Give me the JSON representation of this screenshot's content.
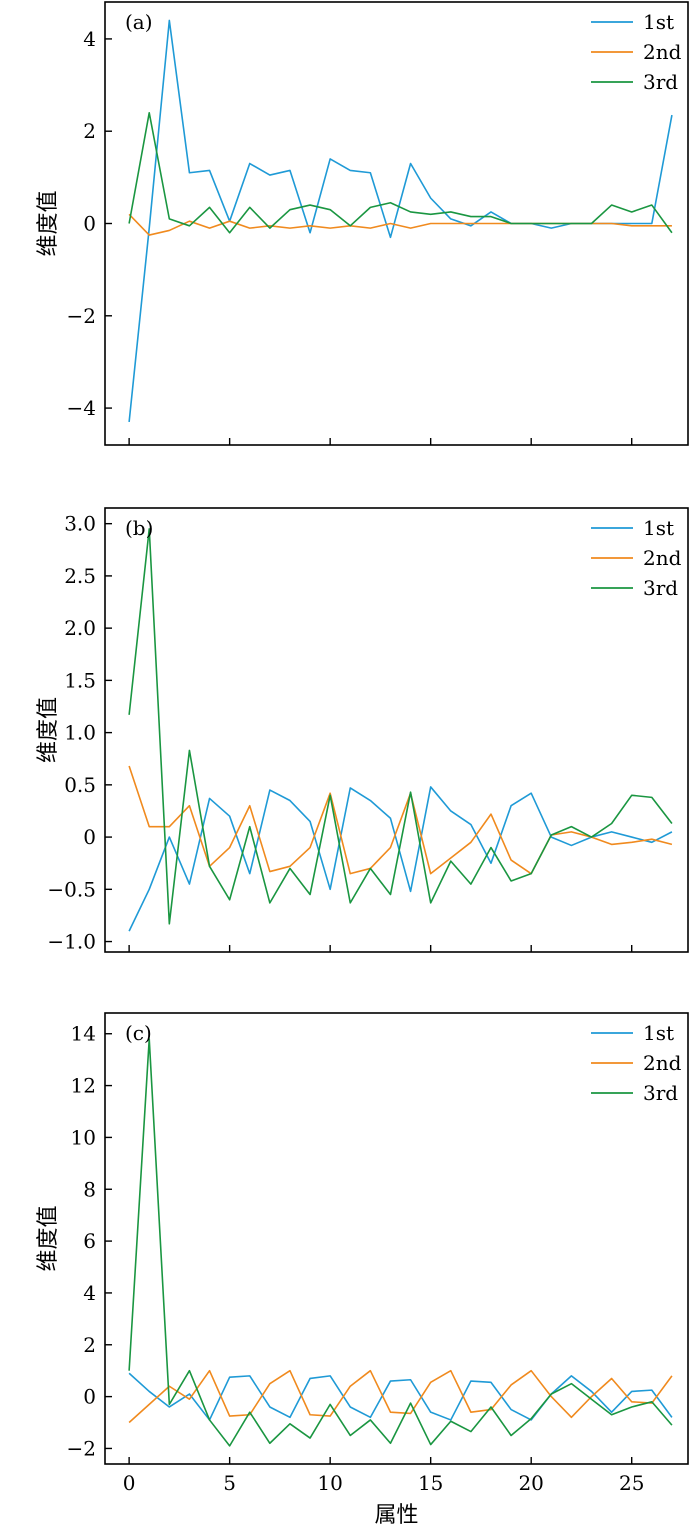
{
  "chart_data": [
    {
      "type": "line",
      "panel_label": "(a)",
      "ylabel": "维度值",
      "xlabel": "",
      "xlim": [
        -1.2,
        27.8
      ],
      "ylim": [
        -4.8,
        4.8
      ],
      "xticks": [
        0,
        5,
        10,
        15,
        20,
        25
      ],
      "yticks": [
        -4,
        -2,
        0,
        2,
        4
      ],
      "ytick_labels": [
        "−4",
        "−2",
        "0",
        "2",
        "4"
      ],
      "legend_position": "top-right",
      "x": [
        0,
        1,
        2,
        3,
        4,
        5,
        6,
        7,
        8,
        9,
        10,
        11,
        12,
        13,
        14,
        15,
        16,
        17,
        18,
        19,
        20,
        21,
        22,
        23,
        24,
        25,
        26,
        27
      ],
      "series": [
        {
          "name": "1st",
          "color": "#1f9ad6",
          "values": [
            -4.3,
            -0.1,
            4.4,
            1.1,
            1.15,
            0.05,
            1.3,
            1.05,
            1.15,
            -0.2,
            1.4,
            1.15,
            1.1,
            -0.3,
            1.3,
            0.55,
            0.1,
            -0.05,
            0.25,
            0.0,
            0.0,
            -0.1,
            0.0,
            0.0,
            0.0,
            0.0,
            0.0,
            2.35
          ]
        },
        {
          "name": "2nd",
          "color": "#f08a1e",
          "values": [
            0.2,
            -0.25,
            -0.15,
            0.05,
            -0.1,
            0.05,
            -0.1,
            -0.05,
            -0.1,
            -0.05,
            -0.1,
            -0.05,
            -0.1,
            0.0,
            -0.1,
            0.0,
            0.0,
            0.0,
            0.0,
            0.0,
            0.0,
            0.0,
            0.0,
            0.0,
            0.0,
            -0.05,
            -0.05,
            -0.05
          ]
        },
        {
          "name": "3rd",
          "color": "#1a9641",
          "values": [
            0.0,
            2.4,
            0.1,
            -0.05,
            0.35,
            -0.2,
            0.35,
            -0.1,
            0.3,
            0.4,
            0.3,
            -0.05,
            0.35,
            0.45,
            0.25,
            0.2,
            0.25,
            0.15,
            0.15,
            0.0,
            0.0,
            0.0,
            0.0,
            0.0,
            0.4,
            0.25,
            0.4,
            -0.2
          ]
        }
      ]
    },
    {
      "type": "line",
      "panel_label": "(b)",
      "ylabel": "维度值",
      "xlabel": "",
      "xlim": [
        -1.2,
        27.8
      ],
      "ylim": [
        -1.1,
        3.15
      ],
      "xticks": [
        0,
        5,
        10,
        15,
        20,
        25
      ],
      "yticks": [
        -1.0,
        -0.5,
        0,
        0.5,
        1.0,
        1.5,
        2.0,
        2.5,
        3.0
      ],
      "ytick_labels": [
        "−1.0",
        "−0.5",
        "0",
        "0.5",
        "1.0",
        "1.5",
        "2.0",
        "2.5",
        "3.0"
      ],
      "legend_position": "top-right",
      "x": [
        0,
        1,
        2,
        3,
        4,
        5,
        6,
        7,
        8,
        9,
        10,
        11,
        12,
        13,
        14,
        15,
        16,
        17,
        18,
        19,
        20,
        21,
        22,
        23,
        24,
        25,
        26,
        27
      ],
      "series": [
        {
          "name": "1st",
          "color": "#1f9ad6",
          "values": [
            -0.9,
            -0.5,
            0.0,
            -0.45,
            0.37,
            0.2,
            -0.35,
            0.45,
            0.35,
            0.15,
            -0.5,
            0.47,
            0.35,
            0.18,
            -0.52,
            0.48,
            0.25,
            0.12,
            -0.25,
            0.3,
            0.42,
            0.0,
            -0.08,
            0.0,
            0.05,
            0.0,
            -0.05,
            0.05
          ]
        },
        {
          "name": "2nd",
          "color": "#f08a1e",
          "values": [
            0.68,
            0.1,
            0.1,
            0.3,
            -0.28,
            -0.1,
            0.3,
            -0.33,
            -0.28,
            -0.1,
            0.42,
            -0.35,
            -0.3,
            -0.1,
            0.42,
            -0.35,
            -0.2,
            -0.05,
            0.22,
            -0.22,
            -0.35,
            0.02,
            0.05,
            0.0,
            -0.07,
            -0.05,
            -0.02,
            -0.07
          ]
        },
        {
          "name": "3rd",
          "color": "#1a9641",
          "values": [
            1.17,
            2.95,
            -0.83,
            0.83,
            -0.28,
            -0.6,
            0.1,
            -0.63,
            -0.3,
            -0.55,
            0.4,
            -0.63,
            -0.3,
            -0.55,
            0.43,
            -0.63,
            -0.23,
            -0.45,
            -0.1,
            -0.42,
            -0.35,
            0.02,
            0.1,
            0.0,
            0.13,
            0.4,
            0.38,
            0.13
          ]
        }
      ]
    },
    {
      "type": "line",
      "panel_label": "(c)",
      "ylabel": "维度值",
      "xlabel": "属性",
      "xlim": [
        -1.2,
        27.8
      ],
      "ylim": [
        -2.6,
        14.8
      ],
      "xticks": [
        0,
        5,
        10,
        15,
        20,
        25
      ],
      "yticks": [
        -2,
        0,
        2,
        4,
        6,
        8,
        10,
        12,
        14
      ],
      "ytick_labels": [
        "−2",
        "0",
        "2",
        "4",
        "6",
        "8",
        "10",
        "12",
        "14"
      ],
      "legend_position": "top-right",
      "x": [
        0,
        1,
        2,
        3,
        4,
        5,
        6,
        7,
        8,
        9,
        10,
        11,
        12,
        13,
        14,
        15,
        16,
        17,
        18,
        19,
        20,
        21,
        22,
        23,
        24,
        25,
        26,
        27
      ],
      "series": [
        {
          "name": "1st",
          "color": "#1f9ad6",
          "values": [
            0.9,
            0.2,
            -0.4,
            0.1,
            -0.9,
            0.75,
            0.8,
            -0.4,
            -0.8,
            0.7,
            0.8,
            -0.4,
            -0.8,
            0.6,
            0.65,
            -0.6,
            -0.9,
            0.6,
            0.55,
            -0.5,
            -0.9,
            0.1,
            0.8,
            0.2,
            -0.6,
            0.2,
            0.25,
            -0.8
          ]
        },
        {
          "name": "2nd",
          "color": "#f08a1e",
          "values": [
            -1.0,
            -0.3,
            0.4,
            -0.1,
            1.0,
            -0.75,
            -0.7,
            0.5,
            1.0,
            -0.7,
            -0.75,
            0.4,
            1.0,
            -0.6,
            -0.65,
            0.55,
            1.0,
            -0.6,
            -0.5,
            0.45,
            1.0,
            0.0,
            -0.8,
            0.0,
            0.7,
            -0.2,
            -0.25,
            0.8
          ]
        },
        {
          "name": "3rd",
          "color": "#1a9641",
          "values": [
            1.0,
            13.8,
            -0.3,
            1.0,
            -0.9,
            -1.9,
            -0.6,
            -1.8,
            -1.05,
            -1.6,
            -0.3,
            -1.5,
            -0.9,
            -1.8,
            -0.25,
            -1.85,
            -0.95,
            -1.35,
            -0.4,
            -1.5,
            -0.85,
            0.1,
            0.5,
            -0.1,
            -0.7,
            -0.4,
            -0.2,
            -1.1
          ]
        }
      ]
    }
  ]
}
